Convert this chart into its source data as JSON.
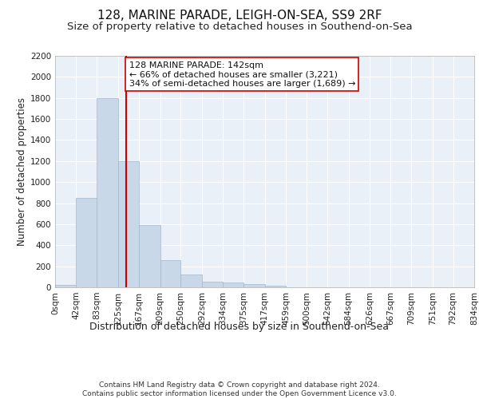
{
  "title1": "128, MARINE PARADE, LEIGH-ON-SEA, SS9 2RF",
  "title2": "Size of property relative to detached houses in Southend-on-Sea",
  "xlabel": "Distribution of detached houses by size in Southend-on-Sea",
  "ylabel": "Number of detached properties",
  "bar_edges": [
    0,
    42,
    83,
    125,
    167,
    209,
    250,
    292,
    334,
    375,
    417,
    459,
    500,
    542,
    584,
    626,
    667,
    709,
    751,
    792,
    834
  ],
  "bar_heights": [
    25,
    850,
    1800,
    1200,
    590,
    260,
    125,
    50,
    45,
    30,
    15,
    0,
    0,
    0,
    0,
    0,
    0,
    0,
    0,
    0
  ],
  "bar_color": "#c8d8e8",
  "bar_edgecolor": "#a0b8cc",
  "vline_x": 142,
  "vline_color": "#cc0000",
  "annotation_text": "128 MARINE PARADE: 142sqm\n← 66% of detached houses are smaller (3,221)\n34% of semi-detached houses are larger (1,689) →",
  "annotation_box_color": "#ffffff",
  "annotation_box_edgecolor": "#cc0000",
  "ylim": [
    0,
    2200
  ],
  "yticks": [
    0,
    200,
    400,
    600,
    800,
    1000,
    1200,
    1400,
    1600,
    1800,
    2000,
    2200
  ],
  "tick_labels": [
    "0sqm",
    "42sqm",
    "83sqm",
    "125sqm",
    "167sqm",
    "209sqm",
    "250sqm",
    "292sqm",
    "334sqm",
    "375sqm",
    "417sqm",
    "459sqm",
    "500sqm",
    "542sqm",
    "584sqm",
    "626sqm",
    "667sqm",
    "709sqm",
    "751sqm",
    "792sqm",
    "834sqm"
  ],
  "bg_color": "#eaf0f8",
  "footer_text": "Contains HM Land Registry data © Crown copyright and database right 2024.\nContains public sector information licensed under the Open Government Licence v3.0.",
  "title1_fontsize": 11,
  "title2_fontsize": 9.5,
  "xlabel_fontsize": 9,
  "ylabel_fontsize": 8.5,
  "tick_fontsize": 7.5,
  "annotation_fontsize": 8,
  "footer_fontsize": 6.5
}
